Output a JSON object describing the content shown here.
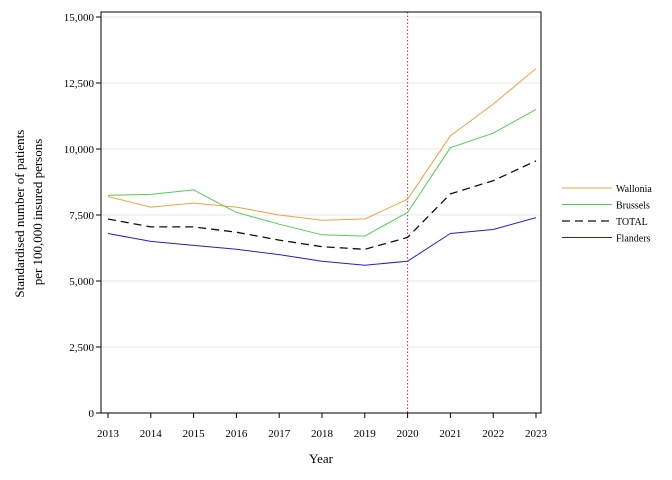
{
  "chart_data": {
    "type": "line",
    "xlabel": "Year",
    "ylabel": [
      "Standardised number of patients",
      "per 100,000 insured persons"
    ],
    "x": [
      2013,
      2014,
      2015,
      2016,
      2017,
      2018,
      2019,
      2020,
      2021,
      2022,
      2023
    ],
    "x_tick_labels": [
      "2013",
      "2014",
      "2015",
      "2016",
      "2017",
      "2018",
      "2019",
      "2020",
      "2021",
      "2022",
      "2023"
    ],
    "ylim": [
      0,
      15000
    ],
    "y_ticks": [
      0,
      2500,
      5000,
      7500,
      10000,
      12500,
      15000
    ],
    "y_tick_labels": [
      "0",
      "2,500",
      "5,000",
      "7,500",
      "10,000",
      "12,500",
      "15,000"
    ],
    "grid": "horizontal",
    "legend_placement": "right",
    "reference_line": {
      "x": 2020,
      "color": "#c0392b",
      "style": "dotted"
    },
    "series": [
      {
        "name": "Wallonia",
        "color": "#f5a040",
        "style": "solid",
        "values": [
          8200,
          7800,
          7950,
          7800,
          7500,
          7300,
          7350,
          8100,
          10500,
          11700,
          13050
        ]
      },
      {
        "name": "Brussels",
        "color": "#4fd04f",
        "style": "solid",
        "values": [
          8250,
          8280,
          8450,
          7600,
          7150,
          6750,
          6700,
          7600,
          10050,
          10600,
          11500
        ]
      },
      {
        "name": "TOTAL",
        "color": "#111111",
        "style": "dashed",
        "values": [
          7350,
          7050,
          7050,
          6850,
          6550,
          6300,
          6200,
          6650,
          8300,
          8800,
          9550
        ]
      },
      {
        "name": "Flanders",
        "color": "#2020d0",
        "style": "solid",
        "values": [
          6800,
          6500,
          6350,
          6200,
          6000,
          5750,
          5600,
          5750,
          6800,
          6950,
          7400
        ]
      }
    ]
  }
}
